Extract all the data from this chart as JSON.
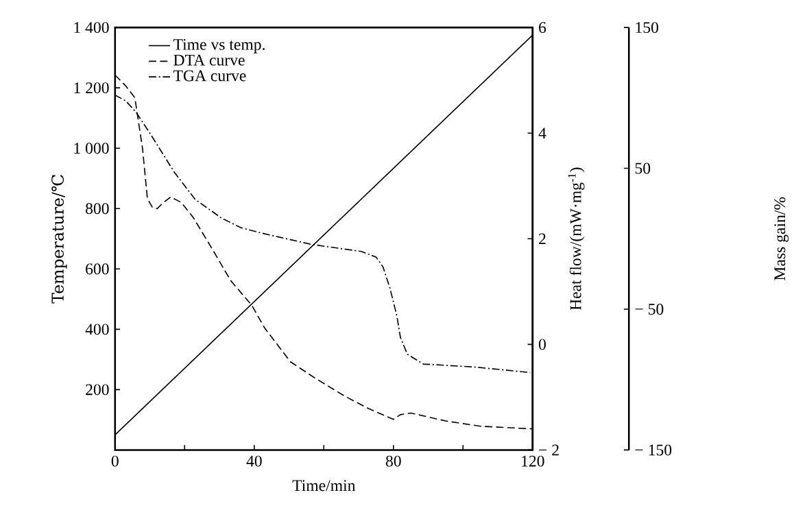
{
  "chart_data": {
    "type": "line",
    "xlabel": "Time/min",
    "ylabel": "Temperature/℃",
    "y2label": "Heat flow/(mW·mg$^{-1}$)",
    "y3label": "Mass gain/%",
    "legend": "top left",
    "xlim": [
      0,
      120
    ],
    "xticks": [
      0,
      {
        "value": 20,
        "label": null
      },
      40,
      {
        "value": 60,
        "label": null
      },
      80,
      {
        "value": 100,
        "label": null
      },
      120
    ],
    "ylim": [
      0,
      1400
    ],
    "yticks": [
      {
        "value": 200,
        "label": "200"
      },
      {
        "value": 400,
        "label": "400"
      },
      {
        "value": 600,
        "label": "600"
      },
      {
        "value": 800,
        "label": "800"
      },
      {
        "value": 1000,
        "label": "1 000"
      },
      {
        "value": 1200,
        "label": "1 200"
      },
      {
        "value": 1400,
        "label": "1 400"
      }
    ],
    "y2lim": [
      -2,
      6
    ],
    "y2ticks": [
      {
        "value": -2,
        "label": "− 2"
      },
      0,
      2,
      4,
      6
    ],
    "y3lim": [
      -150,
      150
    ],
    "y3ticks": [
      {
        "value": -150,
        "label": "− 150"
      },
      {
        "value": -50,
        "label": "− 50"
      },
      50,
      150
    ],
    "series": [
      {
        "name": "Time vs temp.",
        "color": "#000000",
        "line_style": "solid",
        "x": [
          0,
          120
        ],
        "values": [
          50,
          1375
        ]
      },
      {
        "name": "DTA curve",
        "color": "#000000",
        "line_style": "dashed",
        "axis": "y2",
        "x": [
          0,
          3,
          5.7,
          7.9,
          9.3,
          10.7,
          12.1,
          13.6,
          16,
          19,
          22.5,
          27.9,
          33.2,
          39.3,
          43,
          50.4,
          57.5,
          66,
          73,
          80,
          82,
          85,
          95,
          105,
          120
        ],
        "values": [
          5.1,
          4.9,
          4.67,
          3.71,
          2.76,
          2.6,
          2.57,
          2.67,
          2.79,
          2.69,
          2.4,
          1.81,
          1.21,
          0.74,
          0.31,
          -0.33,
          -0.64,
          -0.98,
          -1.22,
          -1.42,
          -1.33,
          -1.3,
          -1.45,
          -1.55,
          -1.6
        ]
      },
      {
        "name": "TGA curve",
        "color": "#000000",
        "line_style": "dashdot",
        "axis": "y3",
        "x": [
          0,
          3,
          6,
          10,
          17.1,
          23,
          30.4,
          36,
          42.1,
          56.4,
          70.7,
          75,
          77,
          79,
          81,
          82,
          84,
          88.6,
          103,
          119.3
        ],
        "values": [
          102,
          98,
          90,
          75,
          47,
          28,
          15,
          8,
          4,
          -4,
          -9,
          -13,
          -20,
          -35,
          -55,
          -70,
          -82,
          -89,
          -91,
          -95
        ]
      }
    ]
  }
}
